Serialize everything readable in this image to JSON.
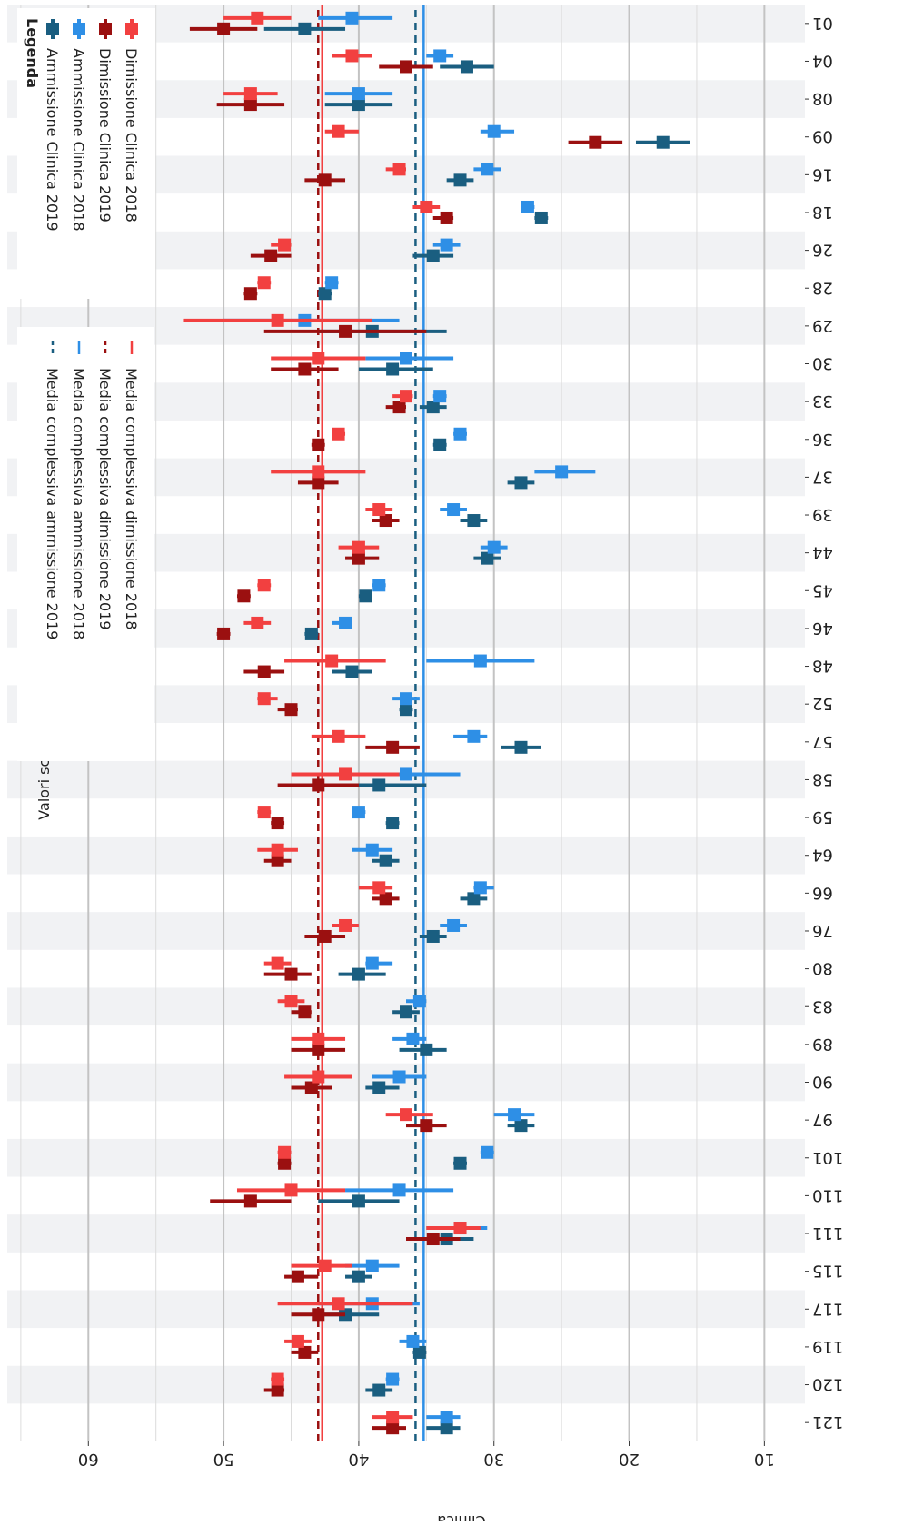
{
  "chart_data": {
    "type": "forest",
    "xlabel": "Clinica",
    "ylabel": "Valori score AVQ",
    "ylim": [
      7,
      66
    ],
    "yticks": [
      60,
      50,
      40,
      30,
      20,
      10
    ],
    "orientation": "rotated 180 degrees (text drawn upside-down)",
    "categories": [
      "01",
      "04",
      "08",
      "09",
      "16",
      "18",
      "26",
      "28",
      "29",
      "30",
      "33",
      "36",
      "37",
      "39",
      "44",
      "45",
      "46",
      "48",
      "52",
      "57",
      "58",
      "59",
      "64",
      "66",
      "76",
      "80",
      "83",
      "89",
      "90",
      "97",
      "101",
      "110",
      "111",
      "115",
      "117",
      "119",
      "120",
      "121"
    ],
    "series": [
      {
        "name": "Ammissione Clinica 2019",
        "color": "#1a5e80",
        "values": [
          [
            44,
            47,
            41
          ],
          [
            32,
            34,
            30
          ],
          [
            40,
            42.5,
            37.5
          ],
          [
            17.5,
            19.5,
            15.5
          ],
          [
            32.5,
            33.5,
            31.5
          ],
          [
            26.5,
            27,
            26
          ],
          [
            34.5,
            36,
            33
          ],
          [
            42.5,
            43,
            42
          ],
          [
            39,
            43,
            33.5
          ],
          [
            37.5,
            40,
            34.5
          ],
          [
            34.5,
            35.5,
            33.5
          ],
          [
            34,
            34.5,
            33.5
          ],
          [
            28,
            29,
            27
          ],
          [
            31.5,
            32.5,
            30.5
          ],
          [
            30.5,
            31.5,
            29.5
          ],
          [
            39.5,
            40,
            39
          ],
          [
            43.5,
            44,
            43
          ],
          [
            40.5,
            42,
            39
          ],
          [
            36.5,
            37,
            36
          ],
          [
            28,
            29.5,
            26.5
          ],
          [
            38.5,
            42.5,
            35
          ],
          [
            37.5,
            38,
            37
          ],
          [
            38,
            39,
            37
          ],
          [
            31.5,
            32.5,
            30.5
          ],
          [
            34.5,
            35.5,
            33.5
          ],
          [
            40,
            41.5,
            38
          ],
          [
            36.5,
            37.5,
            35.5
          ],
          [
            35,
            37,
            33.5
          ],
          [
            38.5,
            39.5,
            37
          ],
          [
            28,
            29,
            27
          ],
          [
            32.5,
            33,
            32
          ],
          [
            40,
            43,
            37
          ],
          [
            33.5,
            35.5,
            31.5
          ],
          [
            40,
            41,
            39
          ],
          [
            41,
            43,
            38.5
          ],
          [
            35.5,
            36,
            35
          ],
          [
            38.5,
            39.5,
            37.5
          ],
          [
            33.5,
            35,
            32.5
          ]
        ]
      },
      {
        "name": "Ammissione Clinica 2018",
        "color": "#2e8fe6",
        "values": [
          [
            40.5,
            43,
            37.5
          ],
          [
            34,
            35,
            33
          ],
          [
            40,
            42.5,
            37.5
          ],
          [
            30,
            31,
            28.5
          ],
          [
            30.5,
            31.5,
            29.5
          ],
          [
            27.5,
            28,
            27
          ],
          [
            33.5,
            34.5,
            32.5
          ],
          [
            42,
            42.5,
            41.5
          ],
          [
            44,
            50,
            37
          ],
          [
            36.5,
            39.5,
            33
          ],
          [
            34,
            34.5,
            33.5
          ],
          [
            32.5,
            33,
            32
          ],
          [
            25,
            27,
            22.5
          ],
          [
            33,
            34,
            32
          ],
          [
            30,
            31,
            29
          ],
          [
            38.5,
            39,
            38
          ],
          [
            41,
            42,
            40.5
          ],
          [
            31,
            35,
            27
          ],
          [
            36.5,
            37.5,
            35.5
          ],
          [
            31.5,
            33,
            30.5
          ],
          [
            36.5,
            40.5,
            32.5
          ],
          [
            40,
            40.5,
            39.5
          ],
          [
            39,
            40.5,
            37.5
          ],
          [
            31,
            31.5,
            30
          ],
          [
            33,
            34,
            32
          ],
          [
            39,
            39.5,
            37.5
          ],
          [
            35.5,
            36.5,
            35
          ],
          [
            36,
            37.5,
            35
          ],
          [
            37,
            39,
            35
          ],
          [
            28.5,
            30,
            27
          ],
          [
            30.5,
            31,
            30
          ],
          [
            37,
            41,
            33
          ],
          [
            32.5,
            35,
            30.5
          ],
          [
            39,
            41,
            37
          ],
          [
            39,
            43,
            35.5
          ],
          [
            36,
            37,
            35
          ],
          [
            37.5,
            38,
            37
          ],
          [
            33.5,
            35,
            32.5
          ]
        ]
      },
      {
        "name": "Dimissione Clinica 2019",
        "color": "#9b1010",
        "values": [
          [
            50,
            52.5,
            47.5
          ],
          [
            36.5,
            38.5,
            34.5
          ],
          [
            48,
            50.5,
            45.5
          ],
          [
            22.5,
            24.5,
            20.5
          ],
          [
            42.5,
            44,
            41
          ],
          [
            33.5,
            34.5,
            33
          ],
          [
            46.5,
            48,
            45
          ],
          [
            48,
            48.5,
            47.5
          ],
          [
            41,
            47,
            35
          ],
          [
            44,
            46.5,
            41.5
          ],
          [
            37,
            38,
            36.5
          ],
          [
            43,
            43.5,
            42.5
          ],
          [
            43,
            44.5,
            41.5
          ],
          [
            38,
            39,
            37
          ],
          [
            40,
            41,
            38.5
          ],
          [
            48.5,
            49,
            48
          ],
          [
            50,
            50.5,
            49.5
          ],
          [
            47,
            48.5,
            45.5
          ],
          [
            45,
            46,
            44.5
          ],
          [
            37.5,
            39.5,
            35.5
          ],
          [
            43,
            46,
            40
          ],
          [
            46,
            46.5,
            45.5
          ],
          [
            46,
            47,
            45
          ],
          [
            38,
            39,
            37
          ],
          [
            42.5,
            44,
            41
          ],
          [
            45,
            47,
            43.5
          ],
          [
            44,
            45,
            43.5
          ],
          [
            43,
            45,
            41
          ],
          [
            43.5,
            45,
            42
          ],
          [
            35,
            36.5,
            33.5
          ],
          [
            45.5,
            46,
            45
          ],
          [
            48,
            51,
            45
          ],
          [
            34.5,
            36.5,
            32.5
          ],
          [
            44.5,
            45.5,
            43
          ],
          [
            43,
            45,
            41
          ],
          [
            44,
            45,
            43
          ],
          [
            46,
            47,
            45.5
          ],
          [
            37.5,
            39,
            36.5
          ]
        ]
      },
      {
        "name": "Dimissione Clinica 2018",
        "color": "#f24040",
        "values": [
          [
            47.5,
            50,
            45
          ],
          [
            40.5,
            42,
            39
          ],
          [
            48,
            50,
            46
          ],
          [
            41.5,
            42.5,
            40
          ],
          [
            37,
            38,
            36.5
          ],
          [
            35,
            36,
            34
          ],
          [
            45.5,
            46.5,
            45
          ],
          [
            47,
            47.5,
            46.5
          ],
          [
            46,
            53,
            39
          ],
          [
            43,
            46.5,
            39.5
          ],
          [
            36.5,
            37.5,
            36
          ],
          [
            41.5,
            42,
            41
          ],
          [
            43,
            46.5,
            39.5
          ],
          [
            38.5,
            39.5,
            37.5
          ],
          [
            40,
            41.5,
            38.5
          ],
          [
            47,
            47.5,
            46.5
          ],
          [
            47.5,
            48.5,
            46.5
          ],
          [
            42,
            45.5,
            38
          ],
          [
            47,
            47.5,
            46
          ],
          [
            41.5,
            43.5,
            39.5
          ],
          [
            41,
            45,
            37
          ],
          [
            47,
            47.5,
            46.5
          ],
          [
            46,
            47.5,
            44.5
          ],
          [
            38.5,
            40,
            37.5
          ],
          [
            41,
            42,
            40
          ],
          [
            46,
            47,
            45
          ],
          [
            45,
            46,
            44
          ],
          [
            43,
            45,
            41
          ],
          [
            43,
            45.5,
            40.5
          ],
          [
            36.5,
            38,
            34.5
          ],
          [
            45.5,
            46,
            45
          ],
          [
            45,
            49,
            41
          ],
          [
            32.5,
            35,
            31
          ],
          [
            42.5,
            45,
            40.5
          ],
          [
            41.5,
            46,
            36
          ],
          [
            44.5,
            45.5,
            43.5
          ],
          [
            46,
            46.5,
            45.5
          ],
          [
            37.5,
            39,
            36
          ]
        ]
      }
    ],
    "reference_lines": [
      {
        "name": "Media complessiva ammissione 2019",
        "value": 35.8,
        "color": "#1a5e80",
        "style": "dashed"
      },
      {
        "name": "Media complessiva ammissione 2018",
        "value": 35.2,
        "color": "#2e8fe6",
        "style": "solid"
      },
      {
        "name": "Media complessiva dimissione 2019",
        "value": 43.0,
        "color": "#9b1010",
        "style": "dashed"
      },
      {
        "name": "Media complessiva dimissione 2018",
        "value": 42.7,
        "color": "#f24040",
        "style": "solid"
      }
    ],
    "legend": {
      "title": "Legenda",
      "placement": "bottom-left (rotated)"
    },
    "grid": true
  }
}
